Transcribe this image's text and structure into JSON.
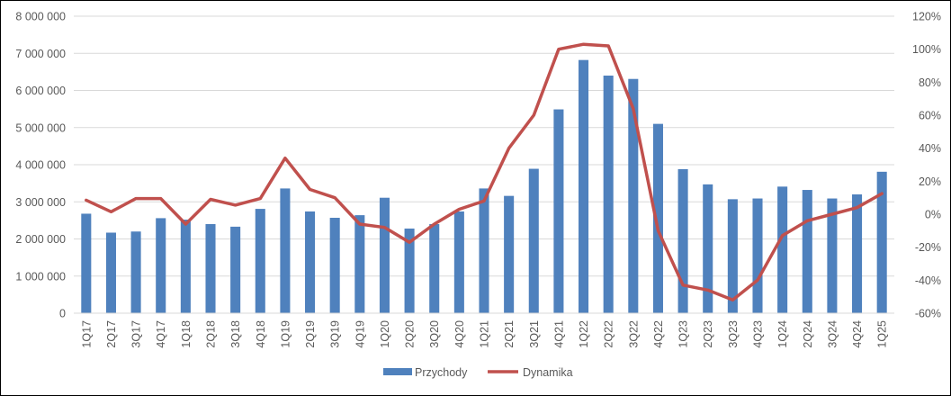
{
  "chart_data": {
    "type": "bar",
    "title": "",
    "xlabel": "",
    "ylabel": "",
    "categories": [
      "1Q17",
      "2Q17",
      "3Q17",
      "4Q17",
      "1Q18",
      "2Q18",
      "3Q18",
      "4Q18",
      "1Q19",
      "2Q19",
      "3Q19",
      "4Q19",
      "1Q20",
      "2Q20",
      "3Q20",
      "4Q20",
      "1Q21",
      "2Q21",
      "3Q21",
      "4Q21",
      "1Q22",
      "2Q22",
      "3Q22",
      "4Q22",
      "1Q23",
      "2Q23",
      "3Q23",
      "4Q23",
      "1Q24",
      "2Q24",
      "3Q24",
      "4Q24",
      "1Q25"
    ],
    "series": [
      {
        "name": "Przychody",
        "type": "bar",
        "axis": "left",
        "color": "#4F81BD",
        "values": [
          2680000,
          2170000,
          2200000,
          2560000,
          2520000,
          2400000,
          2330000,
          2810000,
          3360000,
          2740000,
          2570000,
          2640000,
          3110000,
          2280000,
          2400000,
          2740000,
          3360000,
          3160000,
          3890000,
          5490000,
          6820000,
          6400000,
          6310000,
          5100000,
          3880000,
          3470000,
          3070000,
          3090000,
          3410000,
          3320000,
          3090000,
          3200000,
          3810000
        ]
      },
      {
        "name": "Dynamika",
        "type": "line",
        "axis": "right",
        "color": "#C0504D",
        "values": [
          8.5,
          1.5,
          9.5,
          9.5,
          -6,
          9,
          5.5,
          9.5,
          34,
          15,
          10,
          -6,
          -8,
          -17,
          -6,
          3,
          8,
          40,
          60,
          100,
          103,
          102,
          64,
          -10,
          -43,
          -46,
          -52,
          -40,
          -13,
          -4,
          0,
          4,
          12.5
        ]
      }
    ],
    "y_left": {
      "min": 0,
      "max": 8000000,
      "step": 1000000,
      "tick_labels": [
        "0",
        "1 000 000",
        "2 000 000",
        "3 000 000",
        "4 000 000",
        "5 000 000",
        "6 000 000",
        "7 000 000",
        "8 000 000"
      ]
    },
    "y_right": {
      "min": -60,
      "max": 120,
      "step": 20,
      "tick_labels": [
        "-60%",
        "-40%",
        "-20%",
        "0%",
        "20%",
        "40%",
        "60%",
        "80%",
        "100%",
        "120%"
      ]
    },
    "grid": true,
    "legend_position": "bottom",
    "legend": [
      {
        "label": "Przychody",
        "color": "#4F81BD",
        "kind": "bar"
      },
      {
        "label": "Dynamika",
        "color": "#C0504D",
        "kind": "line"
      }
    ]
  }
}
